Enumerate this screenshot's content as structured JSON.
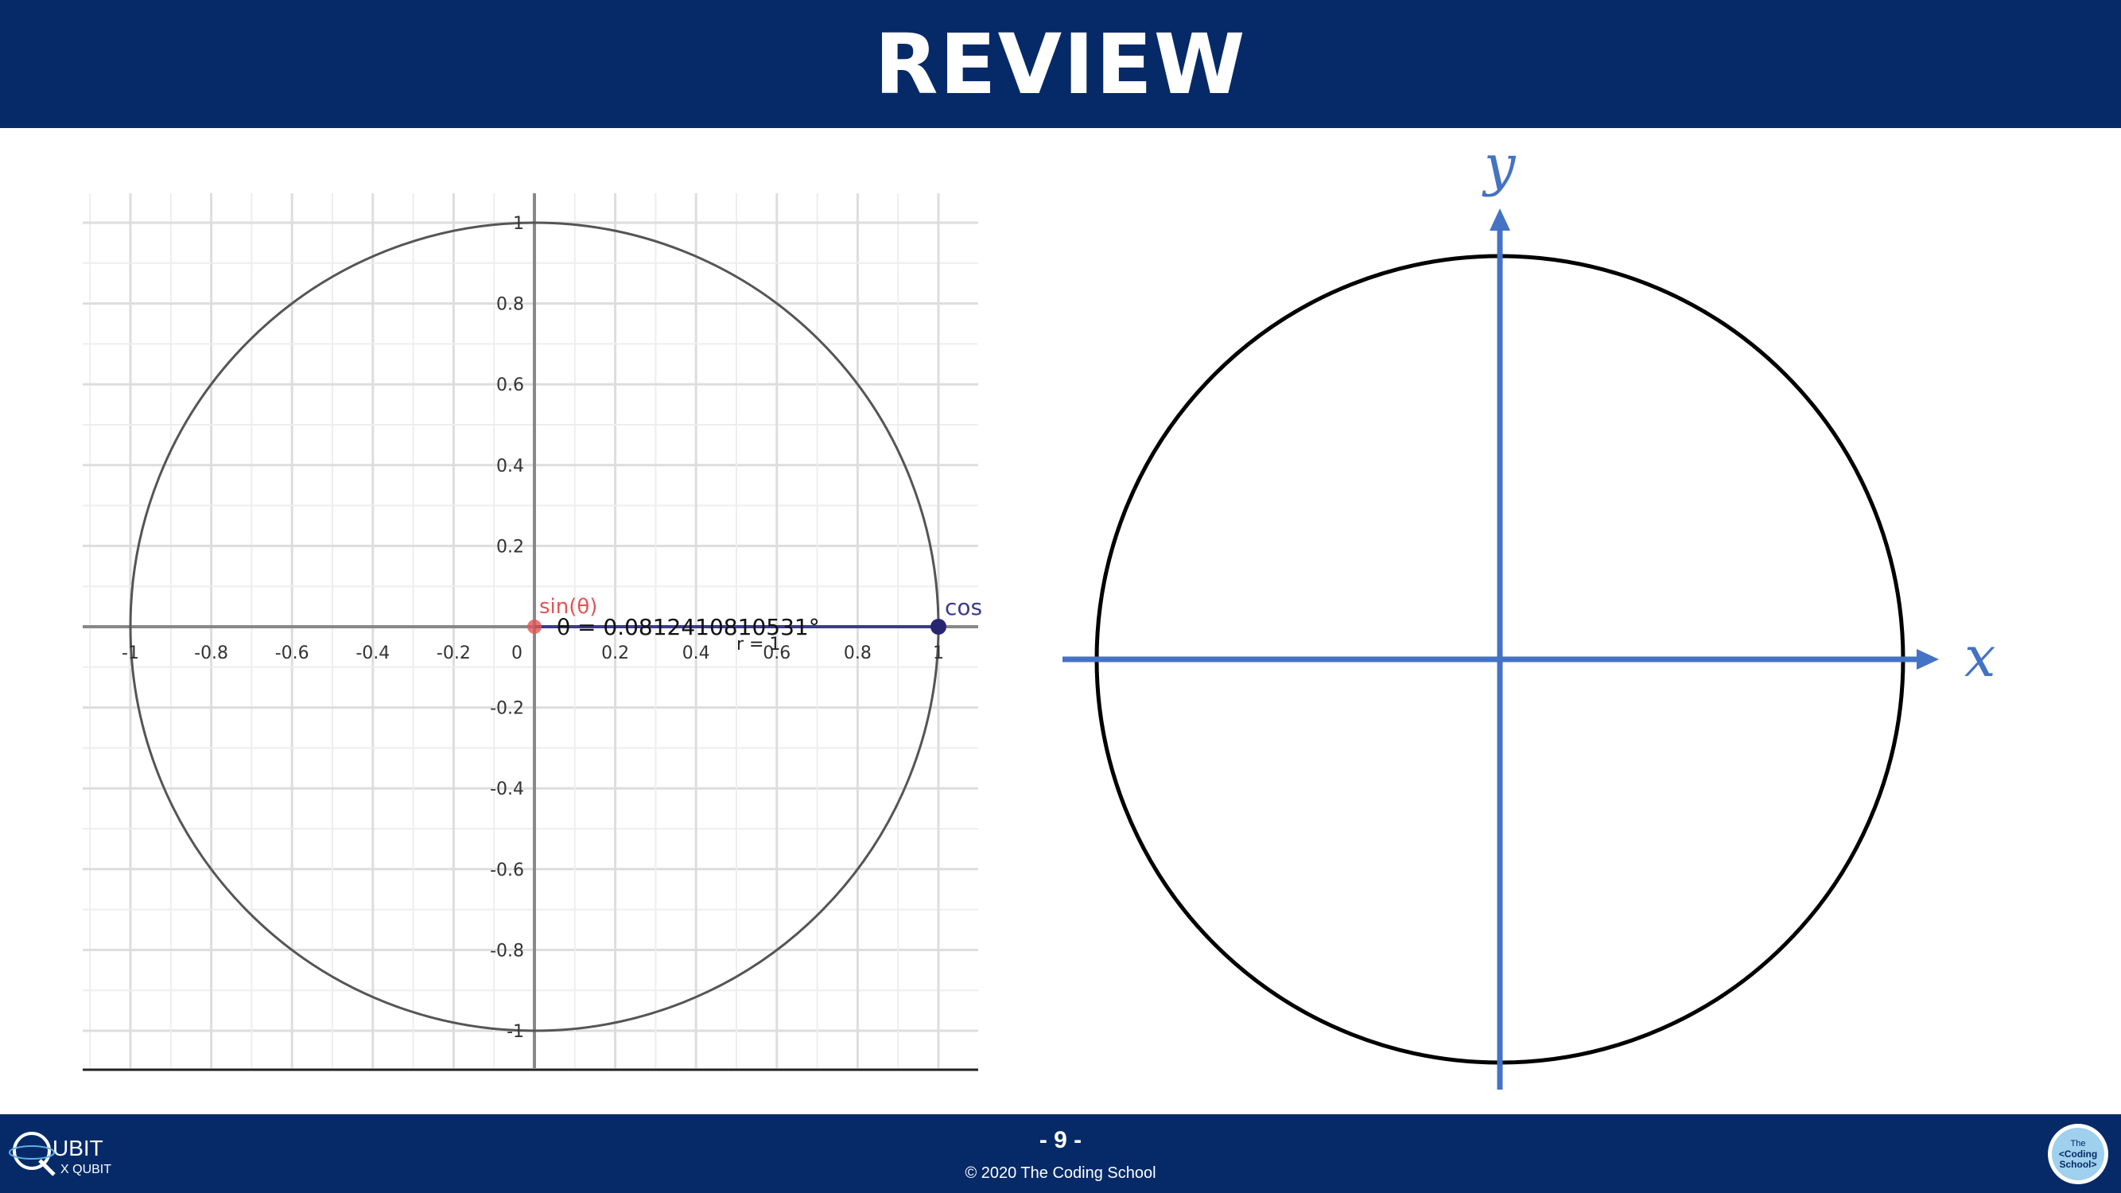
{
  "slide": {
    "title": "REVIEW",
    "page_number": "- 9 -",
    "copyright": "© 2020 The Coding School"
  },
  "brand": {
    "logo_top": "UBIT",
    "logo_bottom": "X QUBIT",
    "school_logo_lines": [
      "The",
      "<Coding",
      "School>"
    ]
  },
  "left_plot": {
    "x_ticks": [
      "-1",
      "-0.8",
      "-0.6",
      "-0.4",
      "-0.2",
      "0",
      "0.2",
      "0.4",
      "0.6",
      "0.8",
      "1"
    ],
    "y_ticks": [
      "1",
      "0.8",
      "0.6",
      "0.4",
      "0.2",
      "-0.2",
      "-0.4",
      "-0.6",
      "-0.8",
      "-1"
    ],
    "sin_label": "sin(θ)",
    "theta_label": "θ = 0.0812410810531°",
    "r_label": "r = 1",
    "cos_label": "cos",
    "circle_color": "#555555",
    "cos_color": "#3b3b8c",
    "sin_color": "#e05555"
  },
  "right_diagram": {
    "x_axis_label": "x",
    "y_axis_label": "y",
    "axis_color": "#4472c4",
    "circle_color": "#000000"
  }
}
